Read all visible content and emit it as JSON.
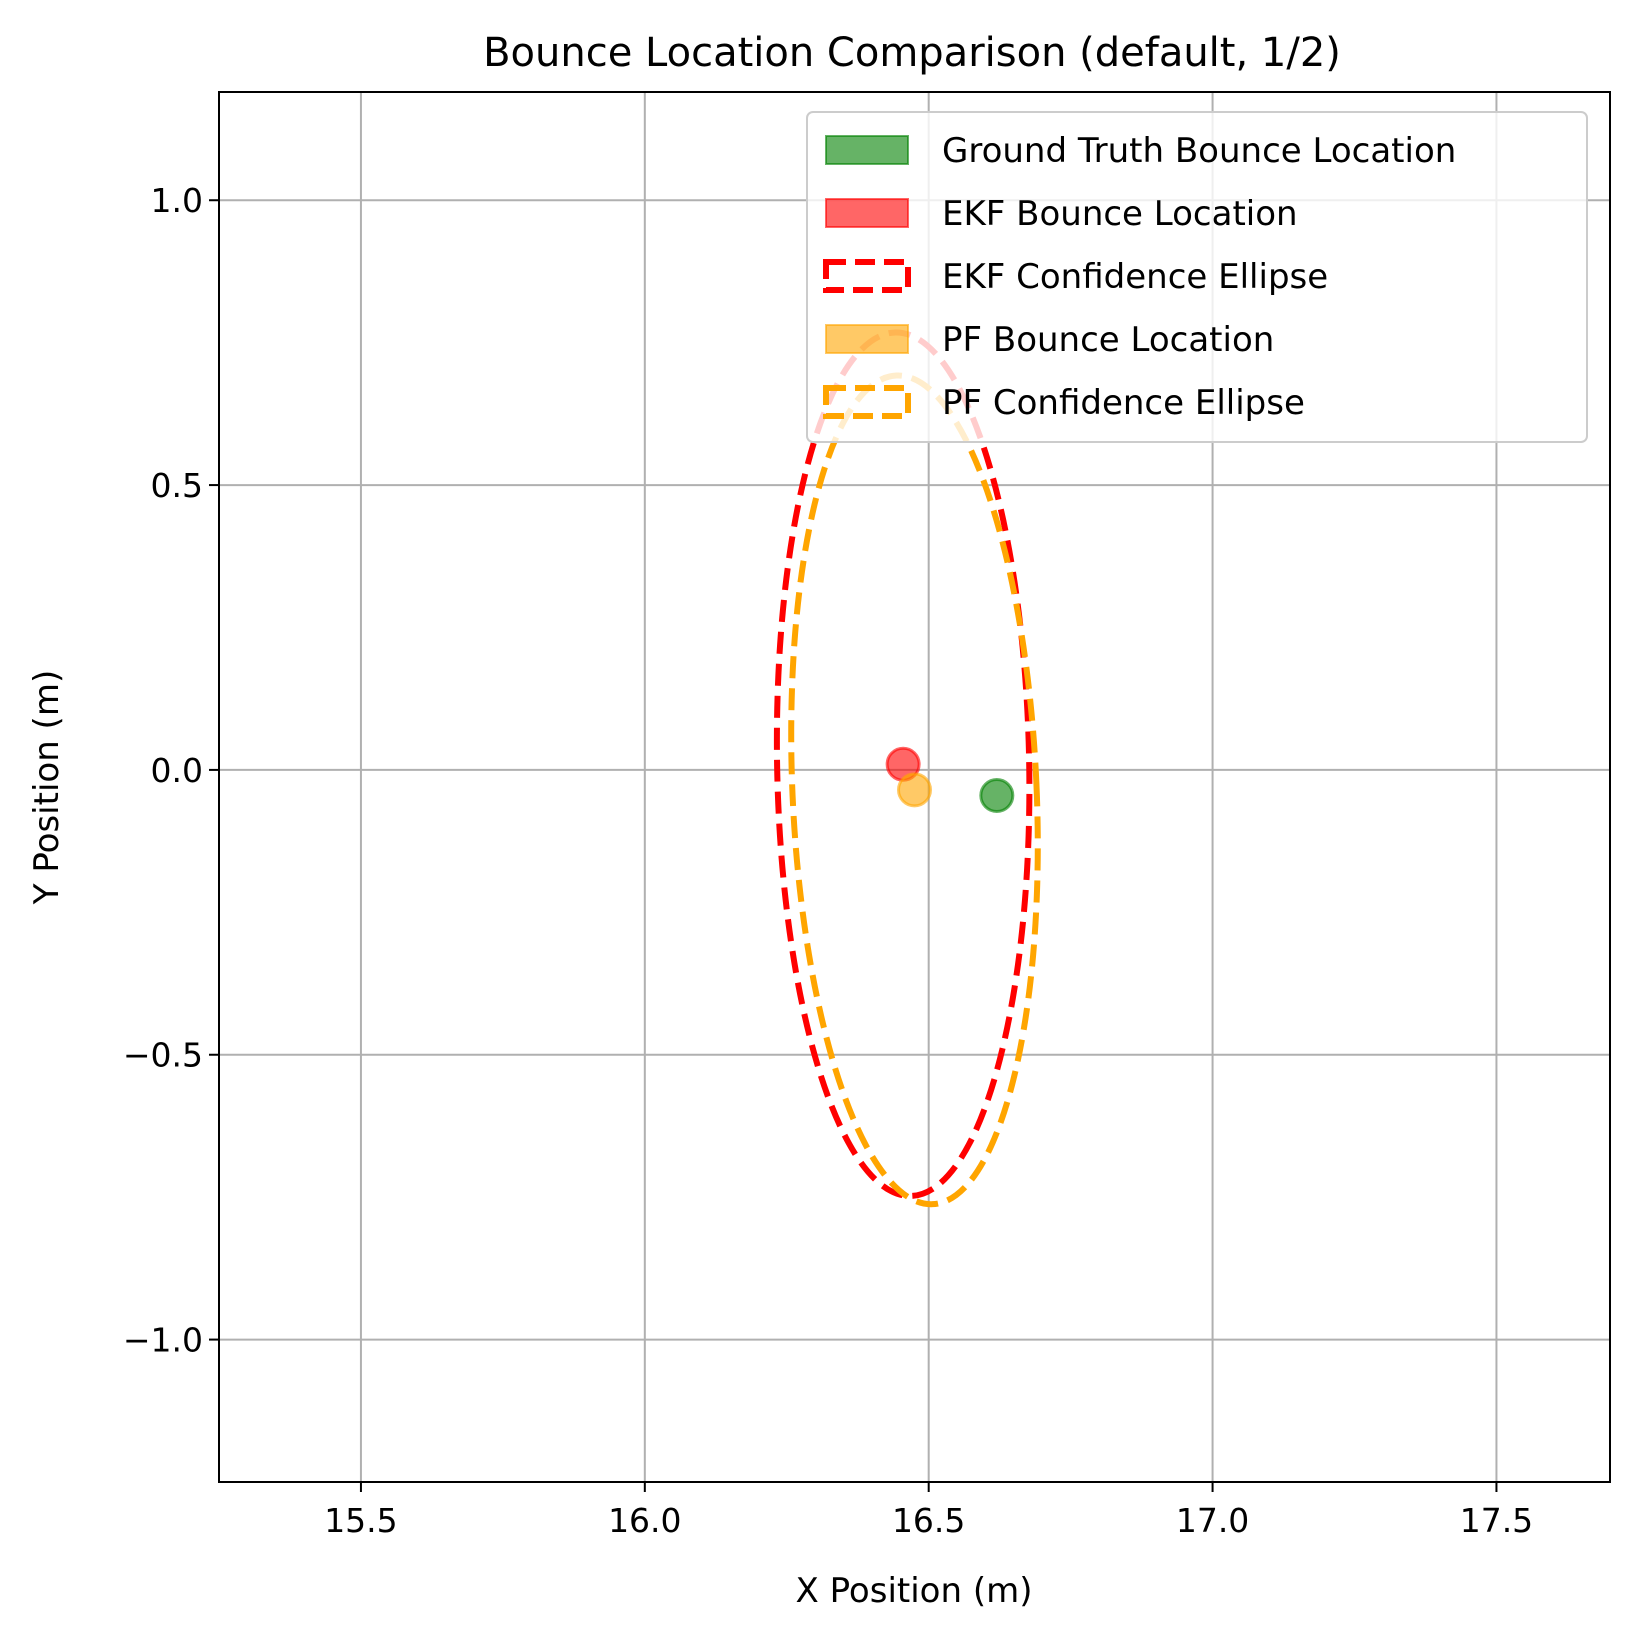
{
  "chart_data": {
    "type": "scatter",
    "title": "Bounce Location Comparison (default, 1/2)",
    "xlabel": "X Position (m)",
    "ylabel": "Y Position (m)",
    "xlim": [
      15.25,
      17.7
    ],
    "ylim": [
      -1.25,
      1.19
    ],
    "xticks": [
      15.5,
      16.0,
      16.5,
      17.0,
      17.5
    ],
    "xtick_labels": [
      "15.5",
      "16.0",
      "16.5",
      "17.0",
      "17.5"
    ],
    "yticks": [
      1.0,
      0.5,
      0.0,
      -0.5,
      -1.0
    ],
    "ytick_labels": [
      "1.0",
      "0.5",
      "0.0",
      "−0.5",
      "−1.0"
    ],
    "grid": true,
    "legend_position": "top-right",
    "legend": [
      {
        "label": "Ground Truth Bounce Location",
        "kind": "point",
        "color": "#008000"
      },
      {
        "label": "EKF Bounce Location",
        "kind": "point",
        "color": "#ff0000"
      },
      {
        "label": "EKF Confidence Ellipse",
        "kind": "ellipse",
        "color": "#ff0000"
      },
      {
        "label": "PF Bounce Location",
        "kind": "point",
        "color": "#ffa500"
      },
      {
        "label": "PF Confidence Ellipse",
        "kind": "ellipse",
        "color": "#ffa500"
      }
    ],
    "points": [
      {
        "name": "Ground Truth Bounce Location",
        "x": 16.62,
        "y": -0.045,
        "color": "#008000"
      },
      {
        "name": "EKF Bounce Location",
        "x": 16.455,
        "y": 0.01,
        "color": "#ff0000"
      },
      {
        "name": "PF Bounce Location",
        "x": 16.475,
        "y": -0.035,
        "color": "#ffa500"
      }
    ],
    "ellipses": [
      {
        "name": "EKF Confidence Ellipse",
        "cx": 16.455,
        "cy": 0.01,
        "rx": 0.222,
        "ry": 0.758,
        "angle_deg": 1.0,
        "color": "#ff0000"
      },
      {
        "name": "PF Confidence Ellipse",
        "cx": 16.475,
        "cy": -0.035,
        "rx": 0.215,
        "ry": 0.728,
        "angle_deg": 2.5,
        "color": "#ffa500"
      }
    ]
  }
}
